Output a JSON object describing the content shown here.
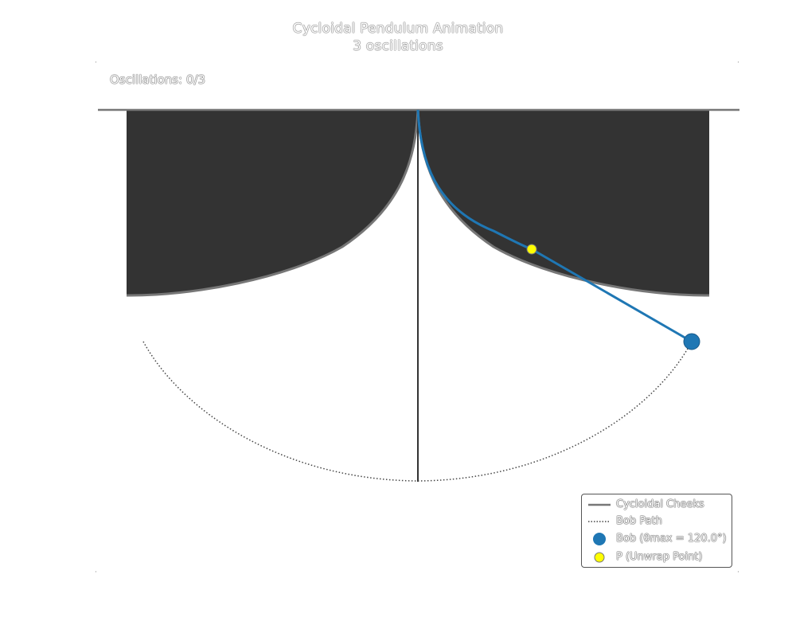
{
  "title": {
    "line1": "Cycloidal Pendulum Animation",
    "line2": "3 oscillations"
  },
  "counter": "Oscillations: 0/3",
  "legend": {
    "cheeks": "Cycloidal Cheeks",
    "path": "Bob Path",
    "bob": "Bob (θmax = 120.0°)",
    "point": "P (Unwrap Point)"
  },
  "colors": {
    "cheek_fill": "#333333",
    "cheek_edge": "#777777",
    "ceiling": "#777777",
    "string": "#1f77b4",
    "bob": "#1f77b4",
    "unwrap_point": "#ffff00",
    "vertical_line": "#333333",
    "path": "#555555"
  },
  "icons": {
    "bob": "blue-circle-marker",
    "point": "yellow-circle-marker"
  }
}
